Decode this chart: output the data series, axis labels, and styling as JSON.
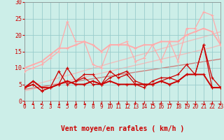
{
  "background_color": "#cceee8",
  "grid_color": "#99cccc",
  "xlabel": "Vent moyen/en rafales ( km/h )",
  "xlabel_color": "#cc0000",
  "ylim": [
    0,
    30
  ],
  "xlim": [
    0,
    23
  ],
  "yticks": [
    0,
    5,
    10,
    15,
    20,
    25,
    30
  ],
  "xticks": [
    0,
    1,
    2,
    3,
    4,
    5,
    6,
    7,
    8,
    9,
    10,
    11,
    12,
    13,
    14,
    15,
    16,
    17,
    18,
    19,
    20,
    21,
    22,
    23
  ],
  "x": [
    0,
    1,
    2,
    3,
    4,
    5,
    6,
    7,
    8,
    9,
    10,
    11,
    12,
    13,
    14,
    15,
    16,
    17,
    18,
    19,
    20,
    21,
    22,
    23
  ],
  "light_pink": "#ffaaaa",
  "dark_red": "#cc0000",
  "trend_light1": [
    4.0,
    4.8,
    5.5,
    6.2,
    7.0,
    7.7,
    8.4,
    9.2,
    9.9,
    10.6,
    11.4,
    12.1,
    12.8,
    13.6,
    14.3,
    15.0,
    15.8,
    16.5,
    17.2,
    18.0,
    18.7,
    19.4,
    20.2,
    21.0
  ],
  "trend_light2": [
    3.0,
    3.6,
    4.2,
    4.8,
    5.4,
    6.0,
    6.6,
    7.2,
    7.8,
    8.4,
    9.0,
    9.6,
    10.2,
    10.8,
    11.4,
    12.0,
    12.6,
    13.2,
    13.8,
    14.4,
    15.0,
    15.6,
    16.2,
    17.0
  ],
  "trend_dark": [
    3.5,
    3.9,
    4.3,
    4.7,
    5.1,
    5.5,
    5.9,
    6.3,
    6.7,
    7.1,
    7.5,
    7.9,
    8.3,
    8.7,
    9.1,
    9.5,
    9.9,
    10.3,
    10.7,
    11.1,
    11.5,
    11.9,
    12.3,
    12.7
  ],
  "light_line1_y": [
    9,
    10,
    11,
    13,
    15,
    24,
    18,
    18,
    11,
    10,
    17,
    17,
    18,
    12,
    13,
    17,
    12,
    18,
    12,
    22,
    22,
    27,
    26,
    17
  ],
  "light_line2_y": [
    10,
    11,
    12,
    14,
    16,
    16,
    17,
    18,
    17,
    15,
    17,
    17,
    17,
    16,
    17,
    17,
    18,
    18,
    18,
    20,
    21,
    22,
    21,
    17
  ],
  "dark_line1_y": [
    4,
    5,
    3,
    4,
    5,
    10,
    6,
    8,
    8,
    5,
    9,
    7,
    8,
    5,
    4,
    6,
    7,
    7,
    8,
    11,
    8,
    17,
    4,
    4
  ],
  "dark_line2_y": [
    4,
    6,
    4,
    4,
    5,
    6,
    5,
    5,
    6,
    5,
    6,
    5,
    5,
    5,
    5,
    5,
    6,
    5,
    6,
    8,
    8,
    8,
    4,
    4
  ],
  "dark_line3_y": [
    4,
    5,
    3,
    4,
    9,
    5,
    6,
    7,
    5,
    5,
    7,
    8,
    9,
    6,
    5,
    5,
    6,
    7,
    6,
    8,
    8,
    17,
    7,
    4
  ],
  "arrow_angles_deg": [
    90,
    135,
    135,
    225,
    225,
    225,
    225,
    225,
    225,
    180,
    225,
    180,
    225,
    180,
    180,
    225,
    180,
    225,
    90,
    270,
    225,
    225,
    180,
    135
  ]
}
